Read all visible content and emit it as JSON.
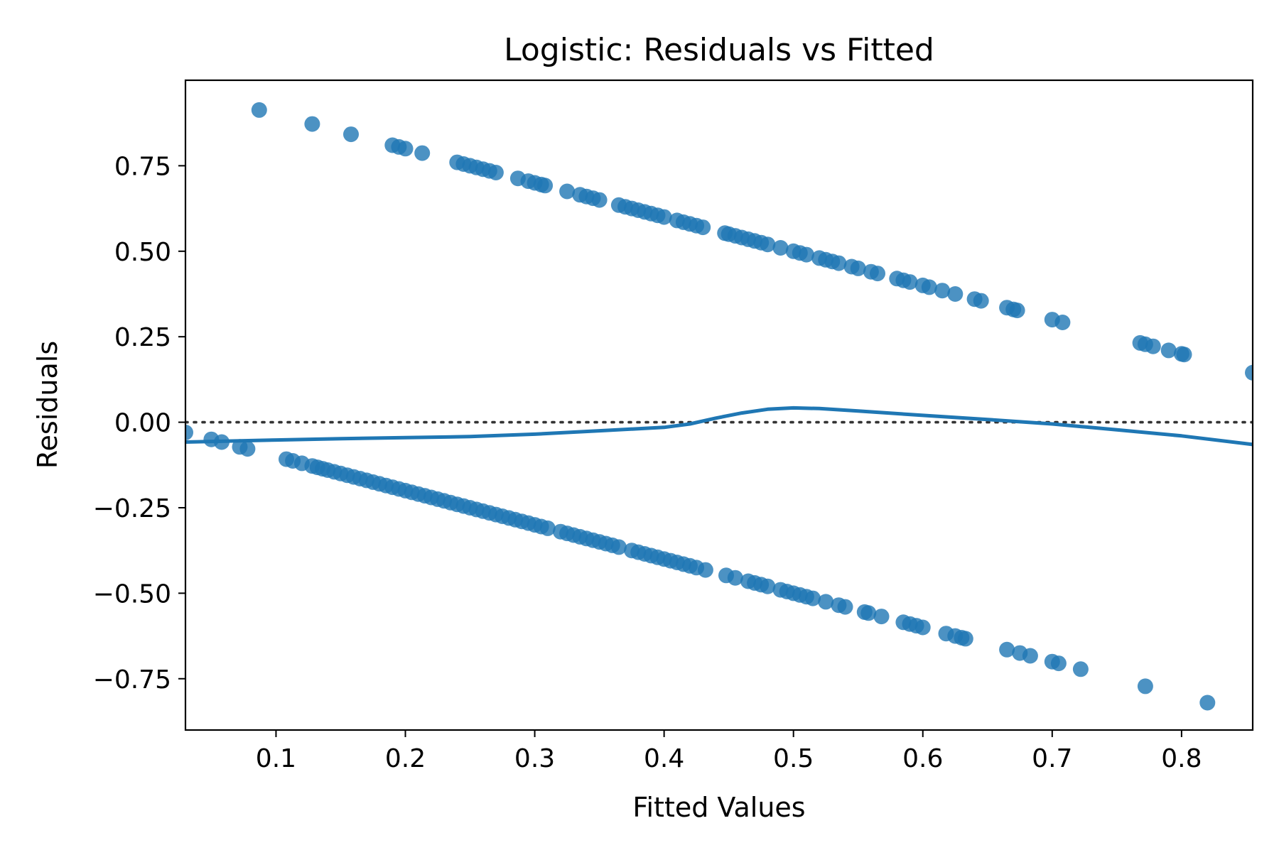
{
  "chart_data": {
    "type": "scatter",
    "title": "Logistic: Residuals vs Fitted",
    "xlabel": "Fitted Values",
    "ylabel": "Residuals",
    "xlim": [
      0.03,
      0.855
    ],
    "ylim": [
      -0.9,
      1.0
    ],
    "xticks": [
      0.1,
      0.2,
      0.3,
      0.4,
      0.5,
      0.6,
      0.7,
      0.8
    ],
    "xtick_labels": [
      "0.1",
      "0.2",
      "0.3",
      "0.4",
      "0.5",
      "0.6",
      "0.7",
      "0.8"
    ],
    "yticks": [
      0.75,
      0.5,
      0.25,
      0.0,
      -0.25,
      -0.5,
      -0.75
    ],
    "ytick_labels": [
      "0.75",
      "0.50",
      "0.25",
      "0.00",
      "−0.25",
      "−0.50",
      "−0.75"
    ],
    "grid": false,
    "series": [
      {
        "color": "#1f77b4",
        "x": [
          0.087,
          0.128,
          0.158,
          0.19,
          0.195,
          0.2,
          0.213,
          0.24,
          0.245,
          0.25,
          0.255,
          0.26,
          0.265,
          0.27,
          0.287,
          0.295,
          0.3,
          0.305,
          0.308,
          0.325,
          0.335,
          0.34,
          0.345,
          0.35,
          0.365,
          0.37,
          0.375,
          0.38,
          0.385,
          0.39,
          0.395,
          0.4,
          0.41,
          0.415,
          0.42,
          0.425,
          0.43,
          0.447,
          0.45,
          0.455,
          0.46,
          0.465,
          0.47,
          0.475,
          0.48,
          0.49,
          0.5,
          0.505,
          0.51,
          0.52,
          0.525,
          0.53,
          0.535,
          0.545,
          0.55,
          0.56,
          0.565,
          0.58,
          0.585,
          0.59,
          0.6,
          0.605,
          0.615,
          0.625,
          0.64,
          0.645,
          0.665,
          0.67,
          0.673,
          0.7,
          0.708,
          0.768,
          0.772,
          0.778,
          0.79,
          0.8,
          0.802,
          0.855
        ],
        "y": [
          0.913,
          0.872,
          0.842,
          0.81,
          0.805,
          0.8,
          0.787,
          0.76,
          0.755,
          0.75,
          0.745,
          0.74,
          0.735,
          0.73,
          0.713,
          0.705,
          0.7,
          0.695,
          0.692,
          0.675,
          0.665,
          0.66,
          0.655,
          0.65,
          0.635,
          0.63,
          0.625,
          0.62,
          0.615,
          0.61,
          0.605,
          0.6,
          0.59,
          0.585,
          0.58,
          0.575,
          0.57,
          0.553,
          0.55,
          0.545,
          0.54,
          0.535,
          0.53,
          0.525,
          0.52,
          0.51,
          0.5,
          0.495,
          0.49,
          0.48,
          0.475,
          0.47,
          0.465,
          0.455,
          0.45,
          0.44,
          0.435,
          0.42,
          0.415,
          0.41,
          0.4,
          0.395,
          0.385,
          0.375,
          0.36,
          0.355,
          0.335,
          0.33,
          0.327,
          0.3,
          0.292,
          0.232,
          0.228,
          0.222,
          0.21,
          0.2,
          0.198,
          0.145
        ]
      },
      {
        "color": "#1f77b4",
        "x": [
          0.03,
          0.05,
          0.058,
          0.072,
          0.078,
          0.108,
          0.113,
          0.12,
          0.128,
          0.132,
          0.136,
          0.14,
          0.145,
          0.15,
          0.155,
          0.16,
          0.165,
          0.17,
          0.175,
          0.18,
          0.185,
          0.19,
          0.195,
          0.2,
          0.205,
          0.21,
          0.215,
          0.22,
          0.225,
          0.23,
          0.235,
          0.24,
          0.245,
          0.25,
          0.255,
          0.26,
          0.265,
          0.27,
          0.275,
          0.28,
          0.285,
          0.29,
          0.295,
          0.3,
          0.305,
          0.31,
          0.32,
          0.325,
          0.33,
          0.335,
          0.34,
          0.345,
          0.35,
          0.355,
          0.36,
          0.365,
          0.375,
          0.38,
          0.385,
          0.39,
          0.395,
          0.4,
          0.405,
          0.41,
          0.415,
          0.42,
          0.425,
          0.432,
          0.448,
          0.455,
          0.465,
          0.47,
          0.475,
          0.48,
          0.49,
          0.495,
          0.5,
          0.505,
          0.51,
          0.515,
          0.525,
          0.535,
          0.54,
          0.555,
          0.558,
          0.568,
          0.585,
          0.59,
          0.595,
          0.6,
          0.618,
          0.625,
          0.63,
          0.633,
          0.665,
          0.675,
          0.683,
          0.7,
          0.705,
          0.722,
          0.772,
          0.82
        ],
        "y": [
          -0.03,
          -0.05,
          -0.058,
          -0.072,
          -0.078,
          -0.108,
          -0.113,
          -0.12,
          -0.128,
          -0.132,
          -0.136,
          -0.14,
          -0.145,
          -0.15,
          -0.155,
          -0.16,
          -0.165,
          -0.17,
          -0.175,
          -0.18,
          -0.185,
          -0.19,
          -0.195,
          -0.2,
          -0.205,
          -0.21,
          -0.215,
          -0.22,
          -0.225,
          -0.23,
          -0.235,
          -0.24,
          -0.245,
          -0.25,
          -0.255,
          -0.26,
          -0.265,
          -0.27,
          -0.275,
          -0.28,
          -0.285,
          -0.29,
          -0.295,
          -0.3,
          -0.305,
          -0.31,
          -0.32,
          -0.325,
          -0.33,
          -0.335,
          -0.34,
          -0.345,
          -0.35,
          -0.355,
          -0.36,
          -0.365,
          -0.375,
          -0.38,
          -0.385,
          -0.39,
          -0.395,
          -0.4,
          -0.405,
          -0.41,
          -0.415,
          -0.42,
          -0.425,
          -0.432,
          -0.448,
          -0.455,
          -0.465,
          -0.47,
          -0.475,
          -0.48,
          -0.49,
          -0.495,
          -0.5,
          -0.505,
          -0.51,
          -0.515,
          -0.525,
          -0.535,
          -0.54,
          -0.555,
          -0.558,
          -0.568,
          -0.585,
          -0.59,
          -0.595,
          -0.6,
          -0.618,
          -0.625,
          -0.63,
          -0.633,
          -0.665,
          -0.675,
          -0.683,
          -0.7,
          -0.705,
          -0.722,
          -0.772,
          -0.82
        ]
      }
    ],
    "lowess": {
      "color": "#1f77b4",
      "x": [
        0.03,
        0.1,
        0.15,
        0.2,
        0.25,
        0.3,
        0.35,
        0.4,
        0.42,
        0.44,
        0.46,
        0.48,
        0.5,
        0.52,
        0.55,
        0.6,
        0.65,
        0.7,
        0.75,
        0.8,
        0.855
      ],
      "y": [
        -0.058,
        -0.052,
        -0.048,
        -0.045,
        -0.042,
        -0.035,
        -0.025,
        -0.015,
        -0.005,
        0.012,
        0.027,
        0.038,
        0.042,
        0.04,
        0.033,
        0.02,
        0.008,
        -0.005,
        -0.022,
        -0.04,
        -0.065
      ]
    },
    "reference_line": {
      "y": 0.0,
      "style": "dotted",
      "color": "#333333"
    }
  }
}
